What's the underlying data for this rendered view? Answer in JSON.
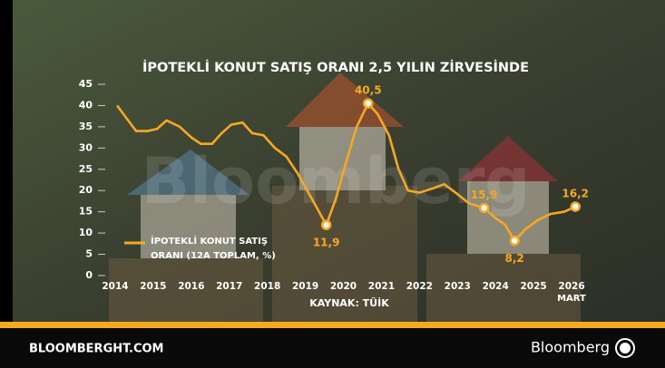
{
  "chart_data": {
    "type": "line",
    "title": "İPOTEKLİ KONUT SATIŞ ORANI 2,5 YILIN ZİRVESİNDE",
    "source": "KAYNAK: TÜİK",
    "x_note": "MART",
    "watermark": "Bloomberg",
    "series": [
      {
        "name": "İPOTEKLİ KONUT SATIŞ ORANI (12A TOPLAM, %)",
        "color": "#f7a823",
        "x": [
          2014.05,
          2014.3,
          2014.55,
          2014.85,
          2015.1,
          2015.35,
          2015.7,
          2016.0,
          2016.25,
          2016.55,
          2016.8,
          2017.05,
          2017.35,
          2017.6,
          2017.9,
          2018.2,
          2018.5,
          2018.8,
          2019.05,
          2019.3,
          2019.55,
          2019.8,
          2020.05,
          2020.35,
          2020.65,
          2020.9,
          2021.2,
          2021.45,
          2021.7,
          2022.0,
          2022.35,
          2022.65,
          2022.95,
          2023.3,
          2023.7,
          2024.0,
          2024.25,
          2024.5,
          2024.8,
          2025.1,
          2025.45,
          2025.8,
          2026.1
        ],
        "values": [
          40,
          37,
          34,
          34,
          34.5,
          36.5,
          35,
          32.5,
          31,
          31,
          33.5,
          35.5,
          36,
          33.5,
          33,
          30,
          28,
          24,
          20,
          16,
          11.9,
          18,
          26,
          35,
          40.5,
          38,
          33,
          25,
          20,
          19.5,
          20.5,
          21.5,
          19.5,
          17,
          15.9,
          13.5,
          12,
          8.2,
          11,
          13,
          14.5,
          15,
          16.2
        ]
      }
    ],
    "annotations": [
      {
        "x": 2020.65,
        "y": 40.5,
        "label": "40,5"
      },
      {
        "x": 2019.55,
        "y": 11.9,
        "label": "11,9"
      },
      {
        "x": 2023.7,
        "y": 15.9,
        "label": "15,9"
      },
      {
        "x": 2024.5,
        "y": 8.2,
        "label": "8,2"
      },
      {
        "x": 2026.1,
        "y": 16.2,
        "label": "16,2"
      }
    ],
    "xlim": [
      2013.5,
      2026.5
    ],
    "xticks": [
      2014,
      2015,
      2016,
      2017,
      2018,
      2019,
      2020,
      2021,
      2022,
      2023,
      2024,
      2025,
      2026
    ],
    "ylim": [
      0,
      45
    ],
    "yticks": [
      0,
      5,
      10,
      15,
      20,
      25,
      30,
      35,
      40,
      45
    ]
  },
  "footer": {
    "site": "BLOOMBERGHT.COM",
    "brand": "Bloomberg"
  }
}
